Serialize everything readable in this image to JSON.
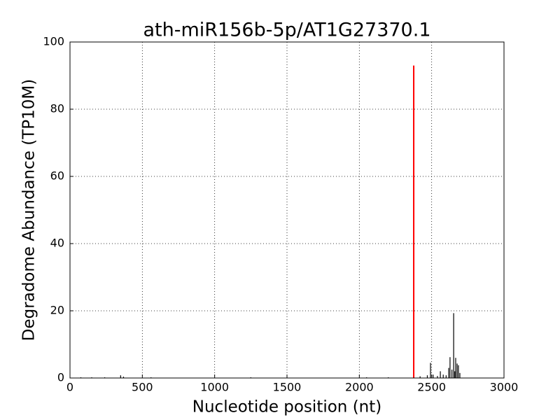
{
  "chart_data": {
    "type": "vlines",
    "title": "ath-miR156b-5p/AT1G27370.1",
    "x_label": "Nucleotide position (nt)",
    "y_label": "Degradome Abundance (TP10M)",
    "series": [
      {
        "color": "#000000",
        "x": [
          75,
          150,
          240,
          350,
          370,
          560,
          900,
          1250,
          1500,
          2050,
          2200,
          2420,
          2470,
          2492,
          2510,
          2540,
          2560,
          2580,
          2600,
          2618,
          2627,
          2640,
          2652,
          2660,
          2666,
          2676,
          2685,
          2695
        ],
        "values": [
          0.2,
          0.2,
          0.2,
          0.8,
          0.4,
          0.2,
          0.1,
          0.2,
          0.1,
          0.2,
          0.2,
          0.5,
          0.8,
          4.5,
          1,
          0.6,
          2,
          1,
          0.8,
          3,
          6.2,
          2.5,
          19.3,
          2,
          6,
          4.3,
          3.8,
          1.5
        ]
      },
      {
        "color": "#ff0000",
        "x": [
          2376
        ],
        "values": [
          93
        ]
      }
    ],
    "xlim": [
      0,
      3000
    ],
    "xticks": [
      0,
      500,
      1000,
      1500,
      2000,
      2500,
      3000
    ],
    "ylim": [
      0,
      100
    ],
    "yticks": [
      0,
      20,
      40,
      60,
      80,
      100
    ],
    "grid": true
  }
}
